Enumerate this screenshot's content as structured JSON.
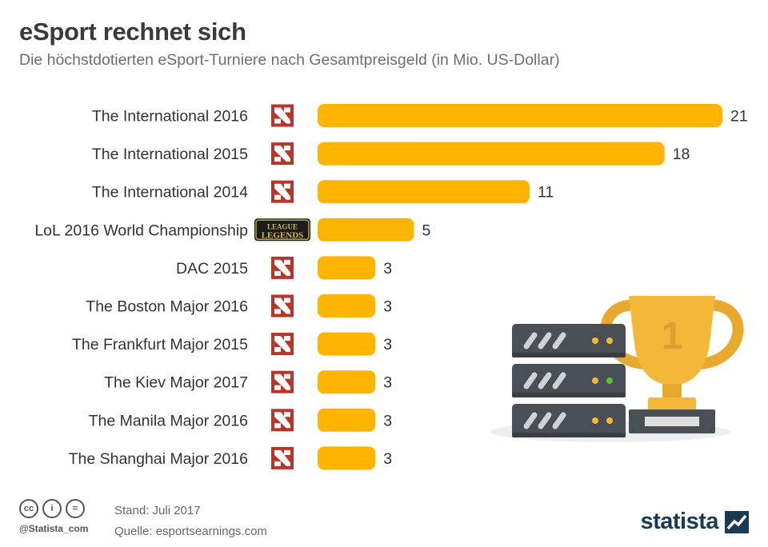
{
  "header": {
    "title": "eSport rechnet sich",
    "subtitle": "Die höchstdotierten eSport-Turniere nach Gesamtpreisgeld (in Mio. US-Dollar)"
  },
  "chart_data": {
    "type": "bar",
    "orientation": "horizontal",
    "categories": [
      "The International 2016",
      "The International 2015",
      "The International 2014",
      "LoL 2016 World Championship",
      "DAC 2015",
      "The Boston Major 2016",
      "The Frankfurt Major 2015",
      "The Kiev Major 2017",
      "The Manila Major 2016",
      "The Shanghai Major 2016"
    ],
    "values": [
      21,
      18,
      11,
      5,
      3,
      3,
      3,
      3,
      3,
      3
    ],
    "data_labels": [
      "21",
      "18",
      "11",
      "5",
      "3",
      "3",
      "3",
      "3",
      "3",
      "3"
    ],
    "game_icons": [
      "dota2-icon",
      "dota2-icon",
      "dota2-icon",
      "league-of-legends-icon",
      "dota2-icon",
      "dota2-icon",
      "dota2-icon",
      "dota2-icon",
      "dota2-icon",
      "dota2-icon"
    ],
    "league_logo_text": [
      "LEAGUE",
      "LEGENDS"
    ],
    "trophy_number": "1",
    "xlim": [
      0,
      21
    ],
    "grid": false,
    "legend": "none",
    "bar_color": "#ffb400"
  },
  "footer": {
    "license_icons": [
      "cc-icon",
      "by-icon",
      "nd-icon"
    ],
    "license_labels": [
      "cc",
      "i",
      "="
    ],
    "handle": "@Statista_com",
    "date": "Stand: Juli 2017",
    "source": "Quelle: esportsearnings.com",
    "brand": "statista"
  },
  "colors": {
    "bar": "#ffb400",
    "dota": "#b8352a",
    "brand": "#1a3a52",
    "server": "#4a4f55",
    "trophy": "#f3b83a"
  }
}
